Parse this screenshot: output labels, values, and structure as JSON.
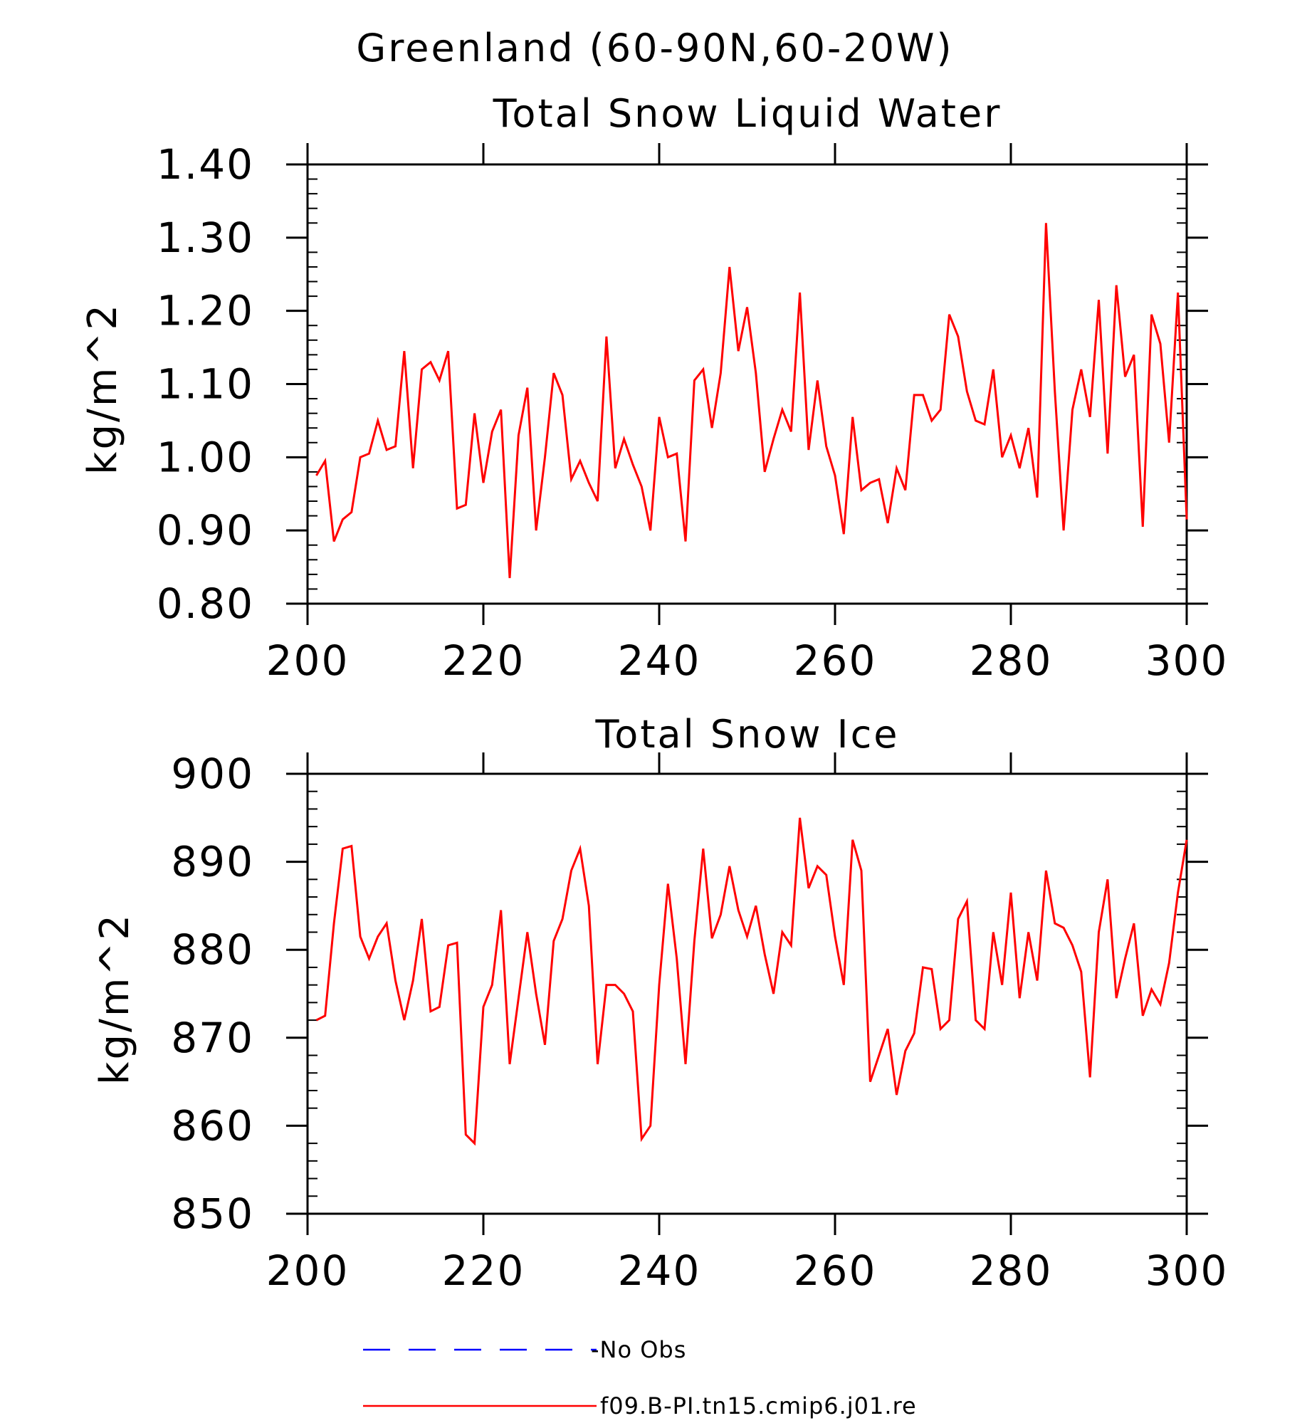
{
  "header": {
    "title": "Greenland (60-90N,60-20W)"
  },
  "colors": {
    "model": "#ff0000",
    "obs": "#0000ff",
    "axis": "#000000"
  },
  "legend": {
    "items": [
      {
        "label": "-No Obs",
        "style": "dashed",
        "color": "#0000ff"
      },
      {
        "label": "f09.B-PI.tn15.cmip6.j01.re",
        "style": "solid",
        "color": "#ff0000"
      }
    ]
  },
  "chart_data": [
    {
      "type": "line",
      "title": "Total Snow Liquid Water",
      "xlabel": "",
      "ylabel": "kg/m^2",
      "xlim": [
        200,
        300
      ],
      "ylim": [
        0.8,
        1.4
      ],
      "xticks": [
        200,
        220,
        240,
        260,
        280,
        300
      ],
      "yticks": [
        0.8,
        0.9,
        1.0,
        1.1,
        1.2,
        1.3,
        1.4
      ],
      "ytick_labels": [
        "0.80",
        "0.90",
        "1.00",
        "1.10",
        "1.20",
        "1.30",
        "1.40"
      ],
      "grid": false,
      "x_start": 201,
      "x_step": 1,
      "series": [
        {
          "color": "#ff0000",
          "values": [
            0.975,
            0.995,
            0.885,
            0.915,
            0.925,
            1.0,
            1.005,
            1.05,
            1.01,
            1.015,
            1.145,
            0.985,
            1.12,
            1.13,
            1.105,
            1.145,
            0.93,
            0.935,
            1.06,
            0.965,
            1.035,
            1.065,
            0.835,
            1.03,
            1.095,
            0.9,
            1.0,
            1.115,
            1.085,
            0.97,
            0.995,
            0.965,
            0.94,
            1.165,
            0.985,
            1.025,
            0.99,
            0.96,
            0.9,
            1.055,
            1.0,
            1.005,
            0.885,
            1.105,
            1.12,
            1.04,
            1.115,
            1.26,
            1.145,
            1.205,
            1.115,
            0.98,
            1.025,
            1.065,
            1.035,
            1.225,
            1.01,
            1.105,
            1.015,
            0.975,
            0.895,
            1.055,
            0.955,
            0.965,
            0.97,
            0.91,
            0.985,
            0.955,
            1.085,
            1.085,
            1.05,
            1.065,
            1.195,
            1.165,
            1.09,
            1.05,
            1.045,
            1.12,
            1.0,
            1.03,
            0.985,
            1.04,
            0.945,
            1.32,
            1.09,
            0.9,
            1.065,
            1.12,
            1.055,
            1.215,
            1.005,
            1.235,
            1.11,
            1.14,
            0.905,
            1.195,
            1.155,
            1.02,
            1.225,
            0.915
          ]
        }
      ]
    },
    {
      "type": "line",
      "title": "Total Snow Ice",
      "xlabel": "",
      "ylabel": "kg/m^2",
      "xlim": [
        200,
        300
      ],
      "ylim": [
        850,
        900
      ],
      "xticks": [
        200,
        220,
        240,
        260,
        280,
        300
      ],
      "yticks": [
        850,
        860,
        870,
        880,
        890,
        900
      ],
      "ytick_labels": [
        "850",
        "860",
        "870",
        "880",
        "890",
        "900"
      ],
      "grid": false,
      "x_start": 201,
      "x_step": 1,
      "series": [
        {
          "color": "#ff0000",
          "values": [
            872,
            872.5,
            883,
            891.5,
            891.8,
            881.5,
            879,
            881.5,
            883,
            876.5,
            872,
            876.5,
            883.5,
            873,
            873.5,
            880.5,
            880.8,
            859,
            858,
            873.5,
            876,
            884.5,
            867,
            874.5,
            882,
            875,
            869.2,
            881,
            883.5,
            889,
            891.5,
            885,
            867,
            876,
            876,
            875,
            873,
            858.5,
            860,
            876,
            887.5,
            879,
            867,
            881,
            891.5,
            881.3,
            884,
            889.5,
            884.5,
            881.5,
            885,
            879.5,
            875,
            882,
            880.5,
            895,
            887,
            889.5,
            888.5,
            881.5,
            876,
            892.5,
            889,
            865,
            868,
            871,
            863.5,
            868.5,
            870.5,
            878,
            877.8,
            871,
            872,
            883.5,
            885.5,
            872,
            871,
            882,
            876,
            886.5,
            874.5,
            882,
            876.5,
            889,
            883,
            882.5,
            880.5,
            877.5,
            865.5,
            882,
            888,
            874.5,
            879,
            883,
            872.5,
            875.5,
            873.8,
            878.5,
            886.5,
            892.5
          ]
        }
      ]
    }
  ]
}
